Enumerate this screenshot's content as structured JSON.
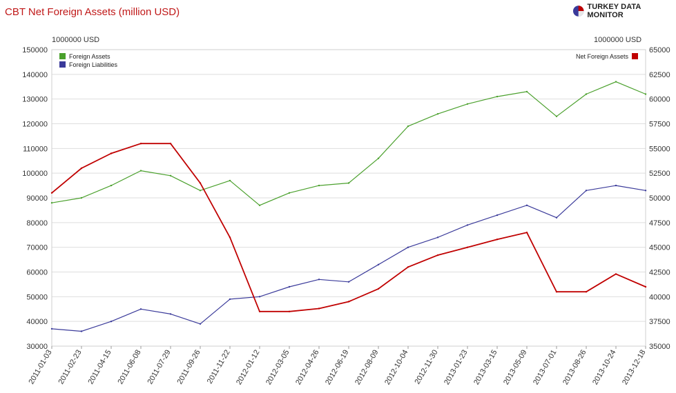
{
  "header": {
    "title": "CBT Net Foreign Assets (million USD)",
    "brand": "TURKEY DATA MONITOR"
  },
  "chart_data": {
    "type": "line",
    "title": "CBT Net Foreign Assets (million USD)",
    "left_axis": {
      "unit_label": "1000000 USD",
      "ylim": [
        30000,
        150000
      ],
      "ticks": [
        "30000",
        "40000",
        "50000",
        "60000",
        "70000",
        "80000",
        "90000",
        "100000",
        "110000",
        "120000",
        "130000",
        "140000",
        "150000"
      ]
    },
    "right_axis": {
      "unit_label": "1000000 USD",
      "ylim": [
        35000,
        65000
      ],
      "ticks": [
        "35000",
        "37500",
        "40000",
        "42500",
        "45000",
        "47500",
        "50000",
        "52500",
        "55000",
        "57500",
        "60000",
        "62500",
        "65000"
      ]
    },
    "x_ticks": [
      "2011-01-03",
      "2011-02-23",
      "2011-04-15",
      "2011-06-08",
      "2011-07-29",
      "2011-09-26",
      "2011-11-22",
      "2012-01-12",
      "2012-03-05",
      "2012-04-26",
      "2012-06-19",
      "2012-08-09",
      "2012-10-04",
      "2012-11-30",
      "2013-01-23",
      "2013-03-15",
      "2013-05-09",
      "2013-07-01",
      "2013-08-26",
      "2013-10-24",
      "2013-12-18"
    ],
    "grid": "horizontal",
    "legend_left": "top-left",
    "legend_right": "top-right",
    "series": [
      {
        "name": "Foreign Assets",
        "axis": "left",
        "color": "#4aa02c",
        "x": [
          "2011-01-03",
          "2011-02-23",
          "2011-04-15",
          "2011-06-08",
          "2011-07-29",
          "2011-09-26",
          "2011-11-22",
          "2012-01-12",
          "2012-03-05",
          "2012-04-26",
          "2012-06-19",
          "2012-08-09",
          "2012-10-04",
          "2012-11-30",
          "2013-01-23",
          "2013-03-15",
          "2013-05-09",
          "2013-07-01",
          "2013-08-26",
          "2013-10-24",
          "2013-12-18"
        ],
        "values": [
          88000,
          90000,
          95000,
          101000,
          99000,
          93000,
          97000,
          87000,
          92000,
          95000,
          96000,
          106000,
          119000,
          124000,
          128000,
          131000,
          133000,
          123000,
          132000,
          137000,
          132000
        ]
      },
      {
        "name": "Foreign Liabilities",
        "axis": "left",
        "color": "#3a3a9a",
        "x": [
          "2011-01-03",
          "2011-02-23",
          "2011-04-15",
          "2011-06-08",
          "2011-07-29",
          "2011-09-26",
          "2011-11-22",
          "2012-01-12",
          "2012-03-05",
          "2012-04-26",
          "2012-06-19",
          "2012-08-09",
          "2012-10-04",
          "2012-11-30",
          "2013-01-23",
          "2013-03-15",
          "2013-05-09",
          "2013-07-01",
          "2013-08-26",
          "2013-10-24",
          "2013-12-18"
        ],
        "values": [
          37000,
          36000,
          40000,
          45000,
          43000,
          39000,
          49000,
          50000,
          54000,
          57000,
          56000,
          63000,
          70000,
          74000,
          79000,
          83000,
          87000,
          82000,
          93000,
          95000,
          93000
        ]
      },
      {
        "name": "Net Foreign Assets",
        "axis": "right",
        "color": "#c00000",
        "x": [
          "2011-01-03",
          "2011-02-23",
          "2011-04-15",
          "2011-06-08",
          "2011-07-29",
          "2011-09-26",
          "2011-11-22",
          "2012-01-12",
          "2012-03-05",
          "2012-04-26",
          "2012-06-19",
          "2012-08-09",
          "2012-10-04",
          "2012-11-30",
          "2013-01-23",
          "2013-03-15",
          "2013-05-09",
          "2013-07-01",
          "2013-08-26",
          "2013-10-24",
          "2013-12-18"
        ],
        "values": [
          50500,
          53000,
          54500,
          55500,
          55500,
          51500,
          46000,
          38500,
          38500,
          38800,
          39500,
          40800,
          43000,
          44200,
          45000,
          45800,
          46500,
          40500,
          40500,
          42300,
          41000
        ]
      }
    ]
  }
}
